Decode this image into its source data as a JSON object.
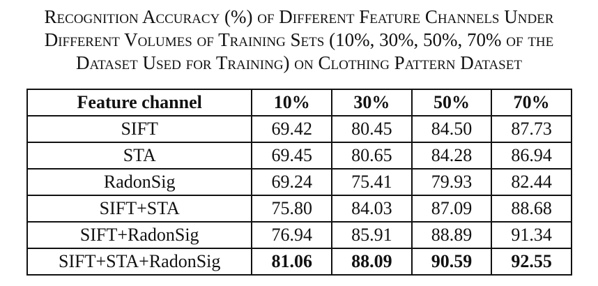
{
  "caption": {
    "line1": "Recognition Accuracy (%) of Different Feature Channels Under",
    "line2": "Different Volumes of Training Sets (10%, 30%, 50%, 70% of the",
    "line3": "Dataset Used for Training) on Clothing Pattern Dataset"
  },
  "table": {
    "headers": [
      "Feature channel",
      "10%",
      "30%",
      "50%",
      "70%"
    ],
    "rows": [
      {
        "channel": "SIFT",
        "values": [
          "69.42",
          "80.45",
          "84.50",
          "87.73"
        ]
      },
      {
        "channel": "STA",
        "values": [
          "69.45",
          "80.65",
          "84.28",
          "86.94"
        ]
      },
      {
        "channel": "RadonSig",
        "values": [
          "69.24",
          "75.41",
          "79.93",
          "82.44"
        ]
      },
      {
        "channel": "SIFT+STA",
        "values": [
          "75.80",
          "84.03",
          "87.09",
          "88.68"
        ]
      },
      {
        "channel": "SIFT+RadonSig",
        "values": [
          "76.94",
          "85.91",
          "88.89",
          "91.34"
        ]
      },
      {
        "channel": "SIFT+STA+RadonSig",
        "values": [
          "81.06",
          "88.09",
          "90.59",
          "92.55"
        ]
      }
    ]
  }
}
